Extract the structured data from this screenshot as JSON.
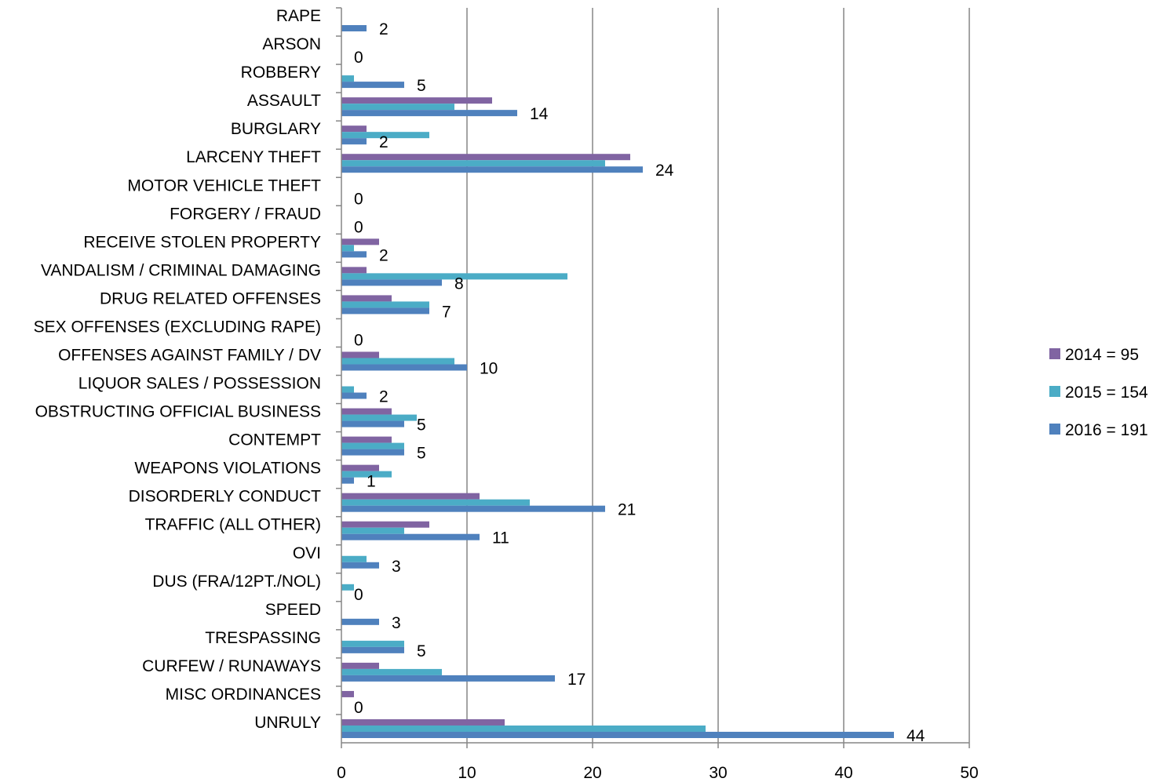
{
  "chart_data": {
    "type": "bar",
    "orientation": "horizontal",
    "categories": [
      "RAPE",
      "ARSON",
      "ROBBERY",
      "ASSAULT",
      "BURGLARY",
      "LARCENY THEFT",
      "MOTOR VEHICLE THEFT",
      "FORGERY / FRAUD",
      "RECEIVE STOLEN PROPERTY",
      "VANDALISM / CRIMINAL DAMAGING",
      "DRUG RELATED OFFENSES",
      "SEX OFFENSES (EXCLUDING RAPE)",
      "OFFENSES AGAINST FAMILY / DV",
      "LIQUOR SALES / POSSESSION",
      "OBSTRUCTING OFFICIAL BUSINESS",
      "CONTEMPT",
      "WEAPONS VIOLATIONS",
      "DISORDERLY CONDUCT",
      "TRAFFIC (ALL OTHER)",
      "OVI",
      "DUS (FRA/12PT./NOL)",
      "SPEED",
      "TRESPASSING",
      "CURFEW / RUNAWAYS",
      "MISC ORDINANCES",
      "UNRULY"
    ],
    "series": [
      {
        "name": "2014 = 95",
        "color": "#8064A2",
        "values": [
          0,
          0,
          0,
          12,
          2,
          23,
          0,
          0,
          3,
          2,
          4,
          0,
          3,
          0,
          4,
          4,
          3,
          11,
          7,
          0,
          0,
          0,
          0,
          3,
          1,
          13
        ]
      },
      {
        "name": "2015 = 154",
        "color": "#4BACC6",
        "values": [
          0,
          0,
          1,
          9,
          7,
          21,
          0,
          0,
          1,
          18,
          7,
          0,
          9,
          1,
          6,
          5,
          4,
          15,
          5,
          2,
          1,
          0,
          5,
          8,
          0,
          29
        ]
      },
      {
        "name": "2016 = 191",
        "color": "#4F81BD",
        "values": [
          2,
          0,
          5,
          14,
          2,
          24,
          0,
          0,
          2,
          8,
          7,
          0,
          10,
          2,
          5,
          5,
          1,
          21,
          11,
          3,
          0,
          3,
          5,
          17,
          0,
          44
        ]
      }
    ],
    "data_labels": [
      "2",
      "0",
      "5",
      "14",
      "2",
      "24",
      "0",
      "0",
      "2",
      "8",
      "7",
      "0",
      "10",
      "2",
      "5",
      "5",
      "1",
      "21",
      "11",
      "3",
      "0",
      "3",
      "5",
      "17",
      "0",
      "44"
    ],
    "xlim": [
      0,
      50
    ],
    "x_ticks": [
      "0",
      "10",
      "20",
      "30",
      "40",
      "50"
    ],
    "grid": "vertical major gridlines",
    "legend_position": "right",
    "title": "",
    "xlabel": "",
    "ylabel": ""
  }
}
